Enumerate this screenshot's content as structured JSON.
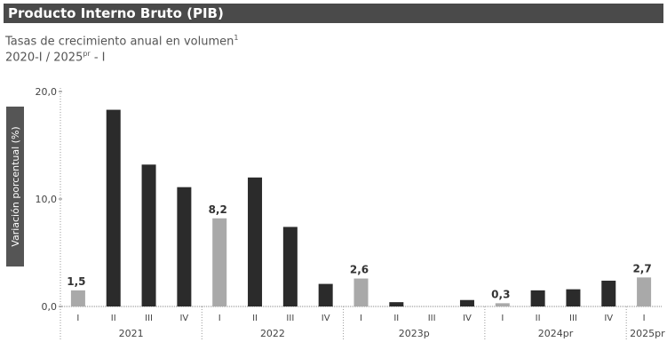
{
  "header": {
    "title": "Producto Interno Bruto (PIB)",
    "subtitle": "Tasas de crecimiento anual en volumen",
    "subtitle_sup": "1",
    "period_a": "2020-I / 2025",
    "period_sup": "pr",
    "period_b": " - I"
  },
  "chart_data": {
    "type": "bar",
    "ylabel": "Variación porcentual (%)",
    "ylim": [
      0,
      20
    ],
    "yticks": [
      "0,0",
      "10,0",
      "20,0"
    ],
    "categories": [
      "I",
      "II",
      "III",
      "IV",
      "I",
      "II",
      "III",
      "IV",
      "I",
      "II",
      "III",
      "IV",
      "I",
      "II",
      "III",
      "IV",
      "I"
    ],
    "groups": [
      "2021",
      "2022",
      "2023p",
      "2024pr",
      "2025pr"
    ],
    "values": [
      1.5,
      18.3,
      13.2,
      11.1,
      8.2,
      12.0,
      7.4,
      2.1,
      2.6,
      0.4,
      0.0,
      0.6,
      0.3,
      1.5,
      1.6,
      2.4,
      2.7
    ],
    "highlighted": [
      true,
      false,
      false,
      false,
      true,
      false,
      false,
      false,
      true,
      false,
      false,
      false,
      true,
      false,
      false,
      false,
      true
    ],
    "data_labels": [
      "1,5",
      "",
      "",
      "",
      "8,2",
      "",
      "",
      "",
      "2,6",
      "",
      "",
      "",
      "0,3",
      "",
      "",
      "",
      "2,7"
    ],
    "colors": {
      "dark": "#2b2b2b",
      "light": "#a9a9a9",
      "label_box": "#555555"
    }
  }
}
